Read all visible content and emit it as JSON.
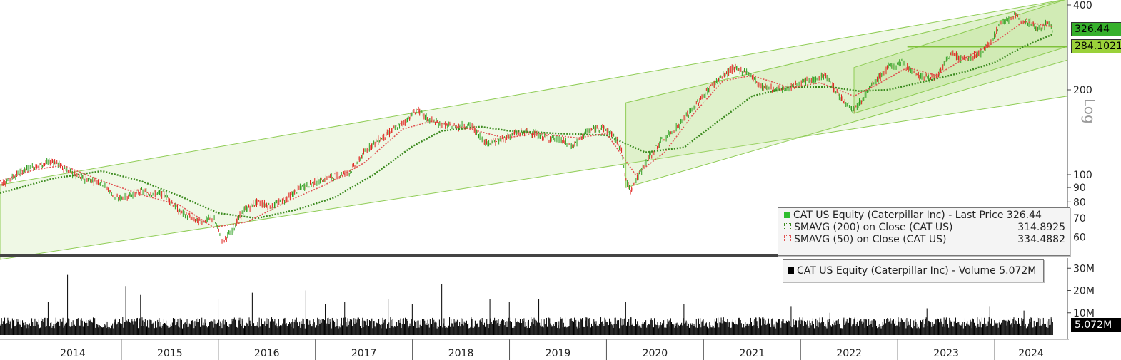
{
  "chart_data": [
    {
      "type": "candlestick",
      "axis_scale": "log",
      "axis_label": "Log",
      "x_ticks": [
        "2014",
        "2015",
        "2016",
        "2017",
        "2018",
        "2019",
        "2020",
        "2021",
        "2022",
        "2023",
        "2024"
      ],
      "y_ticks": [
        60,
        70,
        80,
        90,
        100,
        200,
        400
      ],
      "ylim": [
        55,
        400
      ],
      "up_color": "#2e9e1f",
      "down_color": "#e0201b",
      "series": [
        {
          "name": "CAT US Equity (Caterpillar Inc) - Last Price",
          "last": "326.44",
          "points": [
            [
              2013.75,
              92
            ],
            [
              2014.0,
              104
            ],
            [
              2014.3,
              112
            ],
            [
              2014.55,
              98
            ],
            [
              2014.8,
              94
            ],
            [
              2014.95,
              82
            ],
            [
              2015.2,
              87
            ],
            [
              2015.45,
              85
            ],
            [
              2015.6,
              74
            ],
            [
              2015.8,
              68
            ],
            [
              2015.95,
              70
            ],
            [
              2016.05,
              58
            ],
            [
              2016.15,
              64
            ],
            [
              2016.25,
              74
            ],
            [
              2016.4,
              80
            ],
            [
              2016.55,
              77
            ],
            [
              2016.7,
              82
            ],
            [
              2016.85,
              90
            ],
            [
              2017.0,
              94
            ],
            [
              2017.2,
              99
            ],
            [
              2017.35,
              102
            ],
            [
              2017.55,
              125
            ],
            [
              2017.75,
              140
            ],
            [
              2017.9,
              152
            ],
            [
              2018.05,
              170
            ],
            [
              2018.15,
              158
            ],
            [
              2018.3,
              150
            ],
            [
              2018.45,
              148
            ],
            [
              2018.6,
              150
            ],
            [
              2018.75,
              130
            ],
            [
              2018.9,
              132
            ],
            [
              2019.05,
              140
            ],
            [
              2019.2,
              142
            ],
            [
              2019.35,
              136
            ],
            [
              2019.5,
              134
            ],
            [
              2019.65,
              126
            ],
            [
              2019.8,
              142
            ],
            [
              2019.95,
              148
            ],
            [
              2020.05,
              140
            ],
            [
              2020.15,
              125
            ],
            [
              2020.2,
              95
            ],
            [
              2020.25,
              88
            ],
            [
              2020.4,
              110
            ],
            [
              2020.55,
              130
            ],
            [
              2020.75,
              150
            ],
            [
              2020.95,
              182
            ],
            [
              2021.1,
              210
            ],
            [
              2021.3,
              238
            ],
            [
              2021.45,
              232
            ],
            [
              2021.6,
              205
            ],
            [
              2021.8,
              200
            ],
            [
              2021.95,
              208
            ],
            [
              2022.1,
              215
            ],
            [
              2022.25,
              225
            ],
            [
              2022.4,
              190
            ],
            [
              2022.55,
              170
            ],
            [
              2022.75,
              210
            ],
            [
              2022.9,
              240
            ],
            [
              2023.05,
              250
            ],
            [
              2023.2,
              225
            ],
            [
              2023.4,
              220
            ],
            [
              2023.55,
              270
            ],
            [
              2023.7,
              255
            ],
            [
              2023.85,
              270
            ],
            [
              2023.95,
              290
            ],
            [
              2024.05,
              340
            ],
            [
              2024.2,
              365
            ],
            [
              2024.35,
              350
            ],
            [
              2024.45,
              330
            ],
            [
              2024.55,
              345
            ],
            [
              2024.6,
              326.44
            ]
          ]
        },
        {
          "name": "SMAVG (200) on Close (CAT US)",
          "last": "314.8925",
          "color": "#3b8a1e",
          "points": [
            [
              2013.75,
              86
            ],
            [
              2014.3,
              97
            ],
            [
              2014.8,
              103
            ],
            [
              2015.2,
              95
            ],
            [
              2015.6,
              84
            ],
            [
              2016.0,
              73
            ],
            [
              2016.4,
              70
            ],
            [
              2016.8,
              75
            ],
            [
              2017.2,
              83
            ],
            [
              2017.6,
              100
            ],
            [
              2018.0,
              126
            ],
            [
              2018.3,
              143
            ],
            [
              2018.7,
              148
            ],
            [
              2019.0,
              143
            ],
            [
              2019.5,
              140
            ],
            [
              2020.0,
              138
            ],
            [
              2020.4,
              120
            ],
            [
              2020.8,
              125
            ],
            [
              2021.1,
              150
            ],
            [
              2021.5,
              190
            ],
            [
              2021.9,
              205
            ],
            [
              2022.3,
              205
            ],
            [
              2022.6,
              198
            ],
            [
              2022.9,
              200
            ],
            [
              2023.3,
              215
            ],
            [
              2023.7,
              232
            ],
            [
              2024.0,
              250
            ],
            [
              2024.3,
              285
            ],
            [
              2024.6,
              314.9
            ]
          ]
        },
        {
          "name": "SMAVG (50) on Close (CAT US)",
          "last": "334.4882",
          "color": "#e05050",
          "points": [
            [
              2013.75,
              95
            ],
            [
              2014.1,
              104
            ],
            [
              2014.4,
              108
            ],
            [
              2014.8,
              95
            ],
            [
              2015.2,
              85
            ],
            [
              2015.6,
              78
            ],
            [
              2015.95,
              65
            ],
            [
              2016.3,
              68
            ],
            [
              2016.7,
              80
            ],
            [
              2017.1,
              92
            ],
            [
              2017.5,
              110
            ],
            [
              2017.9,
              145
            ],
            [
              2018.2,
              155
            ],
            [
              2018.6,
              145
            ],
            [
              2018.95,
              135
            ],
            [
              2019.3,
              140
            ],
            [
              2019.7,
              135
            ],
            [
              2020.0,
              140
            ],
            [
              2020.3,
              100
            ],
            [
              2020.6,
              120
            ],
            [
              2020.9,
              165
            ],
            [
              2021.2,
              215
            ],
            [
              2021.5,
              225
            ],
            [
              2021.9,
              203
            ],
            [
              2022.2,
              212
            ],
            [
              2022.55,
              190
            ],
            [
              2022.8,
              210
            ],
            [
              2023.1,
              240
            ],
            [
              2023.4,
              225
            ],
            [
              2023.7,
              260
            ],
            [
              2024.0,
              295
            ],
            [
              2024.3,
              350
            ],
            [
              2024.6,
              334.5
            ]
          ]
        }
      ],
      "trend_level": "284.1021"
    },
    {
      "type": "bar",
      "y_ticks": [
        "10M",
        "20M",
        "30M"
      ],
      "ylim": [
        0,
        32
      ],
      "series": [
        {
          "name": "CAT US Equity (Caterpillar Inc) - Volume",
          "last": "5.072M",
          "color": "#000000",
          "spikes": [
            [
              2014.45,
              27
            ],
            [
              2014.25,
              15
            ],
            [
              2015.05,
              22
            ],
            [
              2015.2,
              18
            ],
            [
              2016.0,
              16
            ],
            [
              2016.35,
              19
            ],
            [
              2016.9,
              20
            ],
            [
              2017.1,
              14
            ],
            [
              2017.3,
              15
            ],
            [
              2017.65,
              15
            ],
            [
              2017.75,
              16
            ],
            [
              2018.0,
              14
            ],
            [
              2018.3,
              23
            ],
            [
              2018.8,
              16
            ],
            [
              2019.0,
              15
            ],
            [
              2019.3,
              16
            ],
            [
              2020.2,
              15
            ],
            [
              2020.8,
              14
            ],
            [
              2021.9,
              13
            ],
            [
              2022.3,
              10
            ],
            [
              2023.3,
              12
            ],
            [
              2023.95,
              13
            ],
            [
              2024.3,
              11
            ]
          ]
        }
      ]
    }
  ],
  "legend": {
    "last_price": {
      "label": "CAT US Equity (Caterpillar Inc) - Last Price 326.44"
    },
    "sma200": {
      "label": "SMAVG (200)  on Close (CAT US)",
      "value": "314.8925"
    },
    "sma50": {
      "label": "SMAVG (50)  on Close (CAT US)",
      "value": "334.4882"
    },
    "volume": {
      "label": "CAT US Equity (Caterpillar Inc) - Volume 5.072M"
    }
  },
  "tags": {
    "last_price": "326.44",
    "trend": "284.1021",
    "volume": "5.072M"
  }
}
